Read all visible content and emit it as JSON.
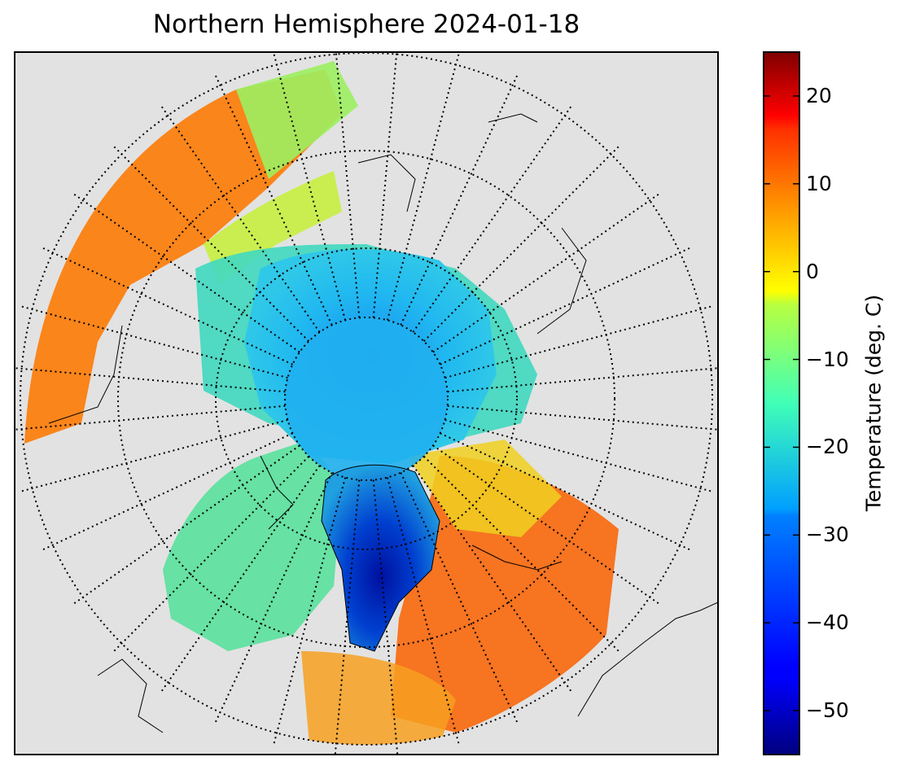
{
  "title": "Northern Hemisphere 2024-01-18",
  "colorbar": {
    "label": "Temperature (deg. C)",
    "min": -55,
    "max": 25,
    "ticks": [
      {
        "value": 20,
        "label": "20"
      },
      {
        "value": 10,
        "label": "10"
      },
      {
        "value": 0,
        "label": "0"
      },
      {
        "value": -10,
        "label": "−10"
      },
      {
        "value": -20,
        "label": "−20"
      },
      {
        "value": -30,
        "label": "−30"
      },
      {
        "value": -40,
        "label": "−40"
      },
      {
        "value": -50,
        "label": "−50"
      }
    ],
    "colormap": "jet"
  },
  "map": {
    "projection": "north-polar-stereographic",
    "background_color": "#e2e2e2",
    "graticule": "dotted",
    "coastlines": true
  }
}
